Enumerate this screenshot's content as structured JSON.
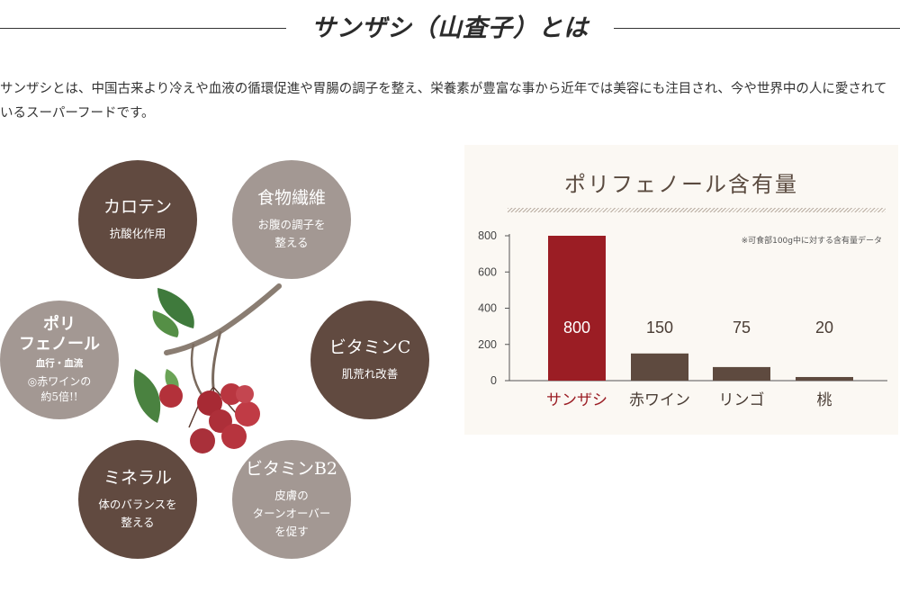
{
  "header": {
    "title": "サンザシ（山査子）とは"
  },
  "intro": {
    "text": "サンザシとは、中国古来より冷えや血液の循環促進や胃腸の調子を整え、栄養素が豊富な事から近年では美容にも注目され、今や世界中の人に愛されているスーパーフードです。"
  },
  "benefits": [
    {
      "title": "カロテン",
      "sub": "抗酸化作用",
      "tone": "dark"
    },
    {
      "title": "食物繊維",
      "sub": "お腹の調子を\n整える",
      "tone": "light"
    },
    {
      "title": "ビタミンC",
      "sub": "肌荒れ改善",
      "tone": "dark"
    },
    {
      "title": "ビタミンB2",
      "sub": "皮膚の\nターンオーバー\nを促す",
      "tone": "light"
    },
    {
      "title": "ミネラル",
      "sub": "体のバランスを\n整える",
      "tone": "dark"
    },
    {
      "title": "ポリ\nフェノール",
      "mid": "血行・血流",
      "sub": "◎赤ワインの\n約5倍!!",
      "tone": "light"
    }
  ],
  "illustration": {
    "name": "hawthorn-berries"
  },
  "colors": {
    "dark_circle": "#614a40",
    "light_circle": "#a39893",
    "highlight": "#9b1d24",
    "bar": "#5e4a3f",
    "panel": "#fbf8f3"
  },
  "chart_data": {
    "type": "bar",
    "title": "ポリフェノール含有量",
    "note": "※可食部100g中に対する含有量データ",
    "categories": [
      "サンザシ",
      "赤ワイン",
      "リンゴ",
      "桃"
    ],
    "values": [
      800,
      150,
      75,
      20
    ],
    "data_labels": [
      "800",
      "150",
      "75",
      "20"
    ],
    "yticks": [
      0,
      200,
      400,
      600,
      800
    ],
    "ylim": [
      0,
      800
    ],
    "highlight_index": 0,
    "grid": false
  }
}
